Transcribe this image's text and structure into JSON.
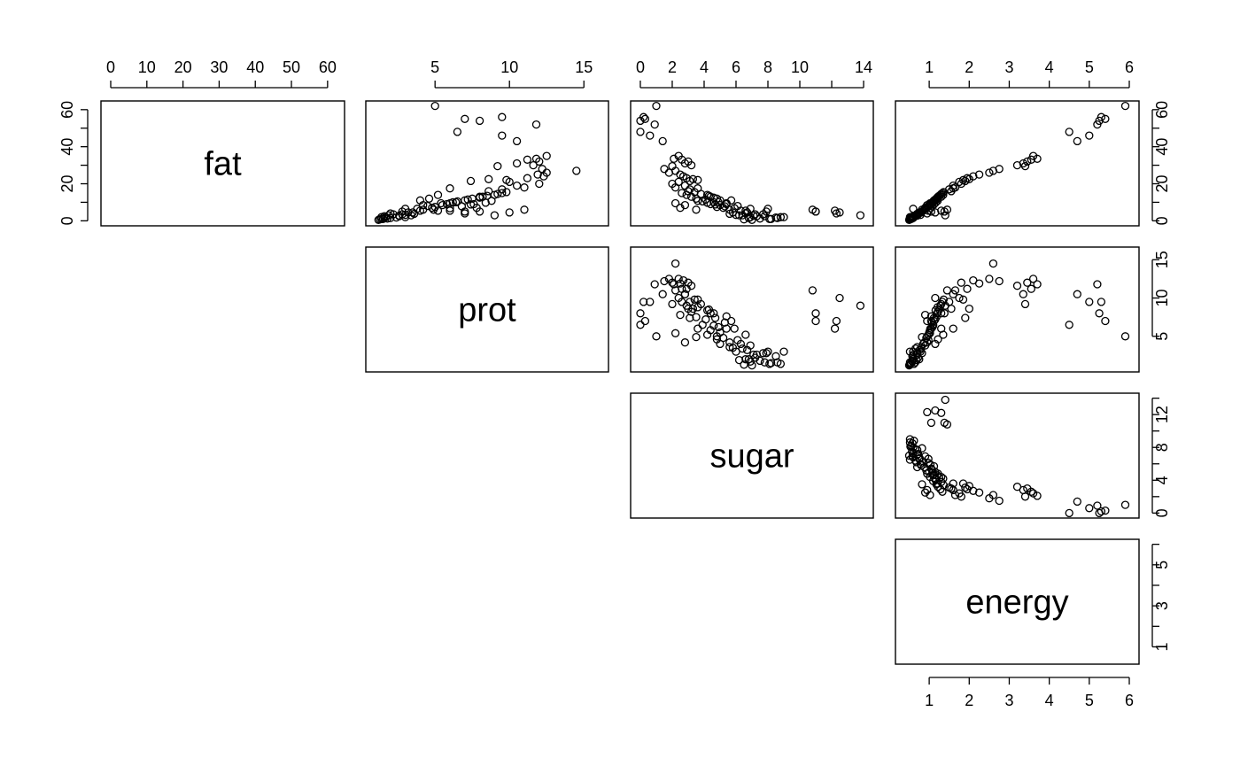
{
  "chart_data": {
    "type": "scatter",
    "kind": "scatterplot-matrix",
    "layout": "upper-triangle",
    "grid": false,
    "variables": [
      {
        "name": "fat",
        "range": [
          0,
          62
        ],
        "ticks": [
          0,
          10,
          20,
          30,
          40,
          50,
          60
        ],
        "top_ticks": [
          0,
          10,
          20,
          30,
          40,
          50,
          60
        ],
        "left_ticks": [
          0,
          20,
          40,
          60
        ]
      },
      {
        "name": "prot",
        "range": [
          1,
          16
        ],
        "ticks": [
          5,
          10,
          15
        ],
        "top_ticks": [
          5,
          10,
          15
        ],
        "right_ticks": [
          5,
          10,
          15
        ]
      },
      {
        "name": "sugar",
        "range": [
          0,
          14
        ],
        "ticks": [
          0,
          2,
          4,
          6,
          8,
          10,
          12,
          14
        ],
        "top_ticks": [
          0,
          2,
          4,
          6,
          8,
          10,
          14
        ],
        "right_ticks": [
          0,
          4,
          8,
          12
        ]
      },
      {
        "name": "energy",
        "range": [
          0.4,
          6
        ],
        "ticks": [
          1,
          2,
          3,
          4,
          5,
          6
        ],
        "top_ticks": [
          1,
          2,
          3,
          4,
          5,
          6
        ],
        "bottom_ticks": [
          1,
          2,
          3,
          4,
          5,
          6
        ],
        "right_ticks": [
          1,
          3,
          5
        ]
      }
    ],
    "observations": [
      [
        0.5,
        1.2,
        7.0,
        0.5
      ],
      [
        0.8,
        1.3,
        6.5,
        0.52
      ],
      [
        1.0,
        1.5,
        8.2,
        0.55
      ],
      [
        1.2,
        1.8,
        7.5,
        0.57
      ],
      [
        1.5,
        2.0,
        6.8,
        0.6
      ],
      [
        2.0,
        1.4,
        8.8,
        0.62
      ],
      [
        2.5,
        1.6,
        7.8,
        0.65
      ],
      [
        3.0,
        1.9,
        6.2,
        0.68
      ],
      [
        3.5,
        2.2,
        7.2,
        0.72
      ],
      [
        4.0,
        2.0,
        6.6,
        0.75
      ],
      [
        1.8,
        2.4,
        8.5,
        0.58
      ],
      [
        2.8,
        2.6,
        7.1,
        0.7
      ],
      [
        3.2,
        3.0,
        6.0,
        0.78
      ],
      [
        4.5,
        3.5,
        5.8,
        0.8
      ],
      [
        5.0,
        2.8,
        7.9,
        0.82
      ],
      [
        5.5,
        4.0,
        6.3,
        0.85
      ],
      [
        6.0,
        4.2,
        5.6,
        0.88
      ],
      [
        6.5,
        3.8,
        6.9,
        0.9
      ],
      [
        7.0,
        4.8,
        5.2,
        0.93
      ],
      [
        7.5,
        5.0,
        4.8,
        0.95
      ],
      [
        8.0,
        4.5,
        6.1,
        0.98
      ],
      [
        8.5,
        5.5,
        5.0,
        1.0
      ],
      [
        9.0,
        5.8,
        4.4,
        1.02
      ],
      [
        9.5,
        6.0,
        5.4,
        1.05
      ],
      [
        10.0,
        6.2,
        4.9,
        1.08
      ],
      [
        10.5,
        6.5,
        3.9,
        1.1
      ],
      [
        11.0,
        7.0,
        5.7,
        1.12
      ],
      [
        11.5,
        7.2,
        4.1,
        1.15
      ],
      [
        12.0,
        7.5,
        3.5,
        1.18
      ],
      [
        12.5,
        8.0,
        4.6,
        1.2
      ],
      [
        13.0,
        8.2,
        3.2,
        1.22
      ],
      [
        13.5,
        8.5,
        4.3,
        1.25
      ],
      [
        14.0,
        9.0,
        2.9,
        1.28
      ],
      [
        14.5,
        9.2,
        3.8,
        1.3
      ],
      [
        15.0,
        9.5,
        2.6,
        1.33
      ],
      [
        15.5,
        9.8,
        3.4,
        1.36
      ],
      [
        5.5,
        5.2,
        6.6,
        0.98
      ],
      [
        6.8,
        6.0,
        5.9,
        1.03
      ],
      [
        7.8,
        6.8,
        5.3,
        1.07
      ],
      [
        8.8,
        7.4,
        4.7,
        1.12
      ],
      [
        9.8,
        8.4,
        4.2,
        1.16
      ],
      [
        10.8,
        8.8,
        3.6,
        1.21
      ],
      [
        4.0,
        7.0,
        12.3,
        0.95
      ],
      [
        5.0,
        7.0,
        11.0,
        1.05
      ],
      [
        4.5,
        10.0,
        12.5,
        1.15
      ],
      [
        3.0,
        9.0,
        13.8,
        1.4
      ],
      [
        6.0,
        11.0,
        10.8,
        1.45
      ],
      [
        5.5,
        6.0,
        12.2,
        1.3
      ],
      [
        5.0,
        8.0,
        11.0,
        1.38
      ],
      [
        6.5,
        3.0,
        8.0,
        0.6
      ],
      [
        2.0,
        3.0,
        9.0,
        0.52
      ],
      [
        17.0,
        9.5,
        3.1,
        1.5
      ],
      [
        19.0,
        10.5,
        2.8,
        1.6
      ],
      [
        21.0,
        10.0,
        2.4,
        1.75
      ],
      [
        22.0,
        9.8,
        3.6,
        1.85
      ],
      [
        23.0,
        11.2,
        2.9,
        1.95
      ],
      [
        16.0,
        8.6,
        3.0,
        1.55
      ],
      [
        18.0,
        11.0,
        2.2,
        1.65
      ],
      [
        20.0,
        12.0,
        2.0,
        1.8
      ],
      [
        24.0,
        12.3,
        2.7,
        2.1
      ],
      [
        25.0,
        11.9,
        2.5,
        2.25
      ],
      [
        26.0,
        12.5,
        1.8,
        2.5
      ],
      [
        27.0,
        14.5,
        2.2,
        2.6
      ],
      [
        28.0,
        12.2,
        1.5,
        2.75
      ],
      [
        30.0,
        11.6,
        3.2,
        3.2
      ],
      [
        31.0,
        10.5,
        2.8,
        3.35
      ],
      [
        32.0,
        12.0,
        3.0,
        3.45
      ],
      [
        33.0,
        11.2,
        2.6,
        3.55
      ],
      [
        22.5,
        8.6,
        3.3,
        2.0
      ],
      [
        21.5,
        7.4,
        3.1,
        1.9
      ],
      [
        17.5,
        6.0,
        3.6,
        1.6
      ],
      [
        14.0,
        5.2,
        4.2,
        1.35
      ],
      [
        12.0,
        4.6,
        4.8,
        1.22
      ],
      [
        11.0,
        4.0,
        5.0,
        1.15
      ],
      [
        13.0,
        8.0,
        4.4,
        1.3
      ],
      [
        9.0,
        7.6,
        5.4,
        1.05
      ],
      [
        10.0,
        6.4,
        4.6,
        1.1
      ],
      [
        3.0,
        3.4,
        6.4,
        0.66
      ],
      [
        2.5,
        2.6,
        7.3,
        0.6
      ],
      [
        1.5,
        1.6,
        8.6,
        0.52
      ],
      [
        1.0,
        1.4,
        8.1,
        0.53
      ],
      [
        2.0,
        1.7,
        6.9,
        0.58
      ],
      [
        3.5,
        2.8,
        7.7,
        0.7
      ],
      [
        4.5,
        3.2,
        6.7,
        0.76
      ],
      [
        48.0,
        6.5,
        0.0,
        4.5
      ],
      [
        54.0,
        8.0,
        0.0,
        5.25
      ],
      [
        55.0,
        7.0,
        0.3,
        5.4
      ],
      [
        56.0,
        9.5,
        0.2,
        5.3
      ],
      [
        62.0,
        5.0,
        1.0,
        5.9
      ],
      [
        43.0,
        10.5,
        1.4,
        4.7
      ],
      [
        46.0,
        9.5,
        0.6,
        5.0
      ],
      [
        52.0,
        11.8,
        0.9,
        5.2
      ],
      [
        35.0,
        12.5,
        2.4,
        3.6
      ],
      [
        33.5,
        11.8,
        2.1,
        3.7
      ],
      [
        29.5,
        9.2,
        2.0,
        3.4
      ],
      [
        8.5,
        4.2,
        2.8,
        0.95
      ],
      [
        6.0,
        4.9,
        3.5,
        0.82
      ],
      [
        7.0,
        7.8,
        2.5,
        0.9
      ],
      [
        3.8,
        3.6,
        5.6,
        0.7
      ],
      [
        9.5,
        5.4,
        2.2,
        1.02
      ]
    ]
  }
}
